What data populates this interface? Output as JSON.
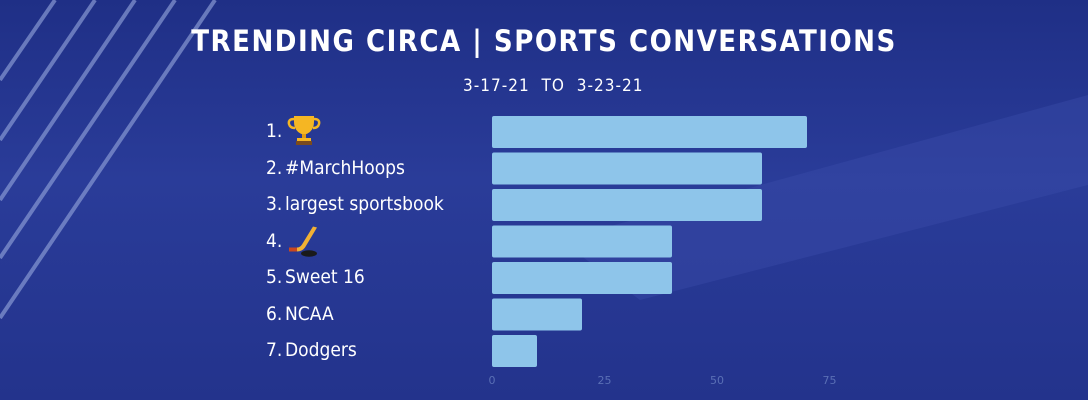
{
  "header": {
    "title": "TRENDING CIRCA | SPORTS CONVERSATIONS",
    "date_range": "3-17-21  TO  3-23-21"
  },
  "colors": {
    "background": "#27378f",
    "bar": "#8ec5ea",
    "text": "#ffffff",
    "tick": "#5a6fb5"
  },
  "rows": [
    {
      "rank": "1.",
      "label": "",
      "icon": "trophy-icon"
    },
    {
      "rank": "2.",
      "label": "#MarchHoops"
    },
    {
      "rank": "3.",
      "label": "largest sportsbook"
    },
    {
      "rank": "4.",
      "label": "",
      "icon": "hockey-stick-icon"
    },
    {
      "rank": "5.",
      "label": "Sweet 16"
    },
    {
      "rank": "6.",
      "label": "NCAA"
    },
    {
      "rank": "7.",
      "label": "Dodgers"
    }
  ],
  "chart_data": {
    "type": "bar",
    "orientation": "horizontal",
    "categories": [
      "1.",
      "2. #MarchHoops",
      "3. largest sportsbook",
      "4.",
      "5. Sweet 16",
      "6. NCAA",
      "7. Dodgers"
    ],
    "values": [
      70,
      60,
      60,
      40,
      40,
      20,
      10
    ],
    "xlim": [
      0,
      75
    ],
    "xticks": [
      "0",
      "25",
      "50",
      "75"
    ],
    "grid": false,
    "legend": "none"
  }
}
